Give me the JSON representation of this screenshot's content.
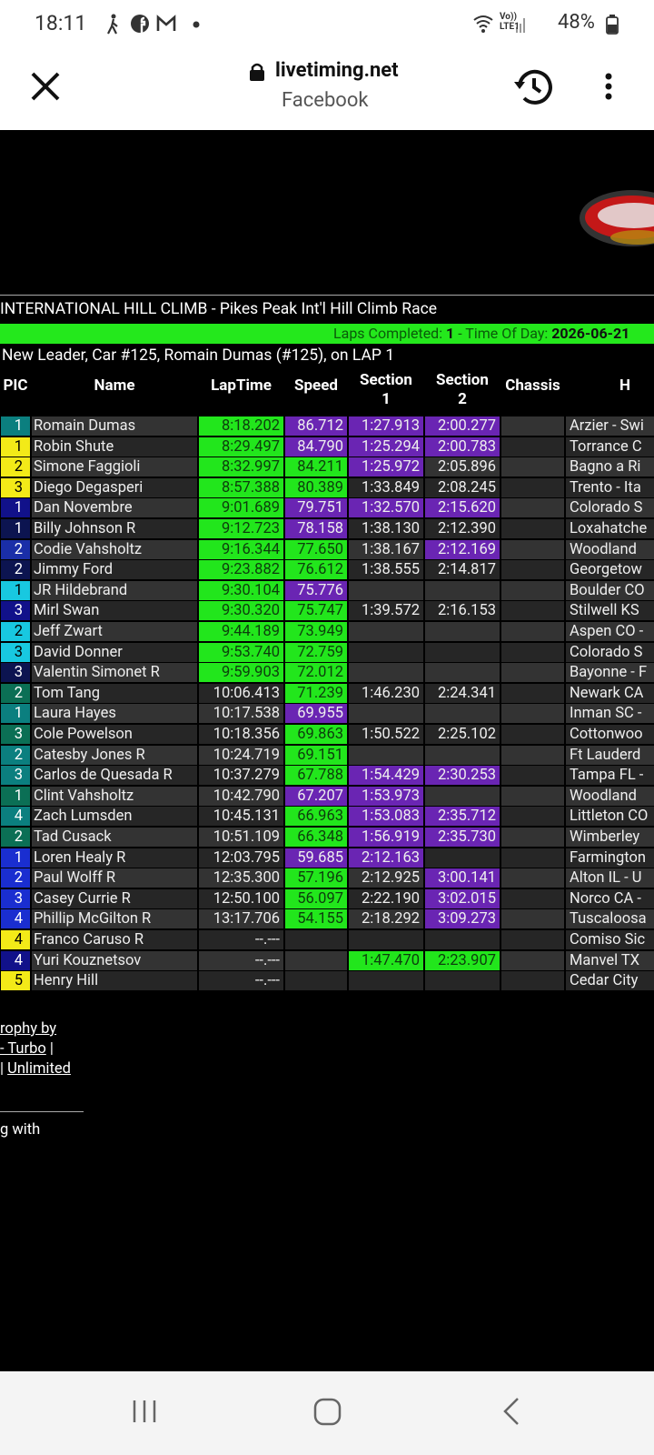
{
  "status_bar": {
    "time": "18:11",
    "network": "Vo)) LTE1",
    "battery": "48%"
  },
  "browser": {
    "domain": "livetiming.net",
    "subtitle": "Facebook"
  },
  "event": {
    "title": "INTERNATIONAL HILL CLIMB - Pikes Peak Int'l Hill Climb Race",
    "laps_label": "Laps Completed:",
    "laps_value": "1",
    "time_label": "- Time Of Day:",
    "time_value": "2026-06-21",
    "leader": "New Leader, Car #125, Romain Dumas (#125), on LAP 1"
  },
  "table": {
    "columns": [
      "PIC",
      "Name",
      "LapTime",
      "Speed",
      "Section 1",
      "Section 2",
      "Chassis",
      "H"
    ],
    "palette": {
      "g": "#22e61c",
      "p": "#6a25b3"
    },
    "rows": [
      {
        "pic": "1",
        "pic_color": "#0b7f7f",
        "name": "Romain Dumas",
        "laptime": "8:18.202",
        "speed": "86.712",
        "section1": "1:27.913",
        "section2": "2:00.277",
        "hometown": "Arzier - Swi",
        "highlight": [
          "g",
          "p",
          "p",
          "p"
        ]
      },
      {
        "pic": "1",
        "pic_color": "#f3ea18",
        "name": "Robin Shute",
        "laptime": "8:29.497",
        "speed": "84.790",
        "section1": "1:25.294",
        "section2": "2:00.783",
        "hometown": "Torrance C",
        "highlight": [
          "g",
          "p",
          "p",
          "p"
        ]
      },
      {
        "pic": "2",
        "pic_color": "#f3ea18",
        "name": "Simone Faggioli",
        "laptime": "8:32.997",
        "speed": "84.211",
        "section1": "1:25.972",
        "section2": "2:05.896",
        "hometown": "Bagno a Ri",
        "highlight": [
          "g",
          "g",
          "p",
          null
        ]
      },
      {
        "pic": "3",
        "pic_color": "#f3ea18",
        "name": "Diego Degasperi",
        "laptime": "8:57.388",
        "speed": "80.389",
        "section1": "1:33.849",
        "section2": "2:08.245",
        "hometown": "Trento - Ita",
        "highlight": [
          "g",
          "g",
          null,
          null
        ]
      },
      {
        "pic": "1",
        "pic_color": "#11118a",
        "name": "Dan Novembre",
        "laptime": "9:01.689",
        "speed": "79.751",
        "section1": "1:32.570",
        "section2": "2:15.620",
        "hometown": "Colorado S",
        "highlight": [
          "g",
          "p",
          "p",
          "p"
        ]
      },
      {
        "pic": "1",
        "pic_color": "#0c1450",
        "name": "Billy Johnson R",
        "laptime": "9:12.723",
        "speed": "78.158",
        "section1": "1:38.130",
        "section2": "2:12.390",
        "hometown": "Loxahatche",
        "highlight": [
          "g",
          "p",
          null,
          null
        ]
      },
      {
        "pic": "2",
        "pic_color": "#1a2ea8",
        "name": "Codie Vahsholtz",
        "laptime": "9:16.344",
        "speed": "77.650",
        "section1": "1:38.167",
        "section2": "2:12.169",
        "hometown": "Woodland",
        "highlight": [
          "g",
          "g",
          null,
          "p"
        ]
      },
      {
        "pic": "2",
        "pic_color": "#0c1450",
        "name": "Jimmy Ford",
        "laptime": "9:23.882",
        "speed": "76.612",
        "section1": "1:38.555",
        "section2": "2:14.817",
        "hometown": "Georgetow",
        "highlight": [
          "g",
          "g",
          null,
          null
        ]
      },
      {
        "pic": "1",
        "pic_color": "#18c8e0",
        "name": "JR Hildebrand",
        "laptime": "9:30.104",
        "speed": "75.776",
        "section1": null,
        "section2": null,
        "hometown": "Boulder CO",
        "highlight": [
          "g",
          "p",
          null,
          null
        ]
      },
      {
        "pic": "3",
        "pic_color": "#11118a",
        "name": "Mirl Swan",
        "laptime": "9:30.320",
        "speed": "75.747",
        "section1": "1:39.572",
        "section2": "2:16.153",
        "hometown": "Stilwell KS",
        "highlight": [
          "g",
          "g",
          null,
          null
        ]
      },
      {
        "pic": "2",
        "pic_color": "#18c8e0",
        "name": "Jeff Zwart",
        "laptime": "9:44.189",
        "speed": "73.949",
        "section1": null,
        "section2": null,
        "hometown": "Aspen CO -",
        "highlight": [
          "g",
          "g",
          null,
          null
        ]
      },
      {
        "pic": "3",
        "pic_color": "#18c8e0",
        "name": "David Donner",
        "laptime": "9:53.740",
        "speed": "72.759",
        "section1": null,
        "section2": null,
        "hometown": "Colorado S",
        "highlight": [
          "g",
          "g",
          null,
          null
        ]
      },
      {
        "pic": "3",
        "pic_color": "#0c1450",
        "name": "Valentin Simonet R",
        "laptime": "9:59.903",
        "speed": "72.012",
        "section1": null,
        "section2": null,
        "hometown": "Bayonne - F",
        "highlight": [
          "g",
          "g",
          null,
          null
        ]
      },
      {
        "pic": "2",
        "pic_color": "#0b6f55",
        "name": "Tom Tang",
        "laptime": "10:06.413",
        "speed": "71.239",
        "section1": "1:46.230",
        "section2": "2:24.341",
        "hometown": "Newark CA",
        "highlight": [
          null,
          "g",
          null,
          null
        ]
      },
      {
        "pic": "1",
        "pic_color": "#0b7f7f",
        "name": "Laura Hayes",
        "laptime": "10:17.538",
        "speed": "69.955",
        "section1": null,
        "section2": null,
        "hometown": "Inman SC -",
        "highlight": [
          null,
          "p",
          null,
          null
        ]
      },
      {
        "pic": "3",
        "pic_color": "#0b6f55",
        "name": "Cole Powelson",
        "laptime": "10:18.356",
        "speed": "69.863",
        "section1": "1:50.522",
        "section2": "2:25.102",
        "hometown": "Cottonwoo",
        "highlight": [
          null,
          "g",
          null,
          null
        ]
      },
      {
        "pic": "2",
        "pic_color": "#0b7f7f",
        "name": "Catesby Jones R",
        "laptime": "10:24.719",
        "speed": "69.151",
        "section1": null,
        "section2": null,
        "hometown": "Ft Lauderd",
        "highlight": [
          null,
          "g",
          null,
          null
        ]
      },
      {
        "pic": "3",
        "pic_color": "#0b7f7f",
        "name": "Carlos de Quesada R",
        "laptime": "10:37.279",
        "speed": "67.788",
        "section1": "1:54.429",
        "section2": "2:30.253",
        "hometown": "Tampa FL -",
        "highlight": [
          null,
          "g",
          "p",
          "p"
        ]
      },
      {
        "pic": "1",
        "pic_color": "#0b6f55",
        "name": "Clint Vahsholtz",
        "laptime": "10:42.790",
        "speed": "67.207",
        "section1": "1:53.973",
        "section2": null,
        "hometown": "Woodland",
        "highlight": [
          null,
          "p",
          "p",
          null
        ]
      },
      {
        "pic": "4",
        "pic_color": "#0b7f7f",
        "name": "Zach Lumsden",
        "laptime": "10:45.131",
        "speed": "66.963",
        "section1": "1:53.083",
        "section2": "2:35.712",
        "hometown": "Littleton CO",
        "highlight": [
          null,
          "g",
          "p",
          "p"
        ]
      },
      {
        "pic": "2",
        "pic_color": "#0b6f55",
        "name": "Tad Cusack",
        "laptime": "10:51.109",
        "speed": "66.348",
        "section1": "1:56.919",
        "section2": "2:35.730",
        "hometown": "Wimberley",
        "highlight": [
          null,
          "g",
          "p",
          "p"
        ]
      },
      {
        "pic": "1",
        "pic_color": "#1a2ed0",
        "name": "Loren Healy R",
        "laptime": "12:03.795",
        "speed": "59.685",
        "section1": "2:12.163",
        "section2": null,
        "hometown": "Farmington",
        "highlight": [
          null,
          "p",
          "p",
          null
        ]
      },
      {
        "pic": "2",
        "pic_color": "#1a2ed0",
        "name": "Paul Wolff R",
        "laptime": "12:35.300",
        "speed": "57.196",
        "section1": "2:12.925",
        "section2": "3:00.141",
        "hometown": "Alton IL - U",
        "highlight": [
          null,
          "g",
          null,
          "p"
        ]
      },
      {
        "pic": "3",
        "pic_color": "#1a2ed0",
        "name": "Casey Currie R",
        "laptime": "12:50.100",
        "speed": "56.097",
        "section1": "2:22.190",
        "section2": "3:02.015",
        "hometown": "Norco CA -",
        "highlight": [
          null,
          "g",
          null,
          "p"
        ]
      },
      {
        "pic": "4",
        "pic_color": "#1a2ed0",
        "name": "Phillip McGilton R",
        "laptime": "13:17.706",
        "speed": "54.155",
        "section1": "2:18.292",
        "section2": "3:09.273",
        "hometown": "Tuscaloosa",
        "highlight": [
          null,
          "g",
          null,
          "p"
        ]
      },
      {
        "pic": "4",
        "pic_color": "#f3ea18",
        "name": "Franco Caruso R",
        "laptime": "--.---",
        "speed": null,
        "section1": null,
        "section2": null,
        "hometown": "Comiso Sic",
        "highlight": [
          null,
          null,
          null,
          null
        ]
      },
      {
        "pic": "4",
        "pic_color": "#11118a",
        "name": "Yuri Kouznetsov",
        "laptime": "--.---",
        "speed": null,
        "section1": "1:47.470",
        "section2": "2:23.907",
        "hometown": "Manvel TX",
        "highlight": [
          null,
          null,
          "g",
          "g"
        ]
      },
      {
        "pic": "5",
        "pic_color": "#f3ea18",
        "name": "Henry Hill",
        "laptime": "--.---",
        "speed": null,
        "section1": null,
        "section2": null,
        "hometown": "Cedar City",
        "highlight": [
          null,
          null,
          null,
          null
        ]
      }
    ]
  },
  "footer": {
    "line1": "rophy by",
    "line2_link": "- Turbo",
    "line2_sep": "|",
    "line3_sep": "|",
    "line3_link": "Unlimited",
    "line4": "g with"
  }
}
